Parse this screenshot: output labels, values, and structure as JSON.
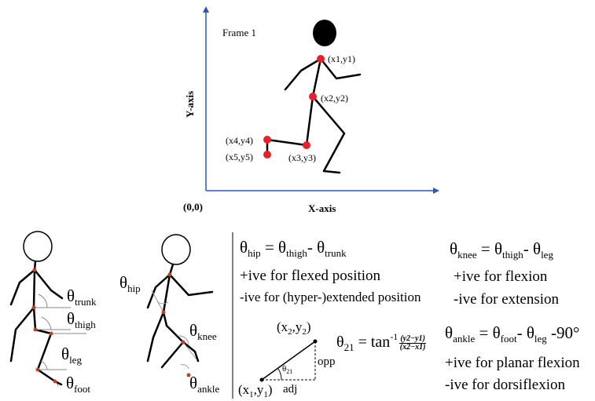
{
  "top_plot": {
    "frame_label": "Frame 1",
    "x_axis_label": "X-axis",
    "y_axis_label": "Y-axis",
    "origin_label": "(0,0)",
    "points": [
      {
        "label": "(x1,y1)"
      },
      {
        "label": "(x2,y2)"
      },
      {
        "label": "(x3,y3)"
      },
      {
        "label": "(x4,y4)"
      },
      {
        "label": "(x5,y5)"
      }
    ],
    "marker_color": "#e8202a"
  },
  "left_figure": {
    "theta": "θ",
    "trunk_sub": "trunk",
    "thigh_sub": "thigh",
    "leg_sub": "leg",
    "foot_sub": "foot",
    "joint_color": "#b8451c"
  },
  "middle_figure": {
    "theta": "θ",
    "hip_sub": "hip",
    "knee_sub": "knee",
    "ankle_sub": "ankle"
  },
  "equations": {
    "theta": "θ",
    "minus": "-",
    "equals": " = ",
    "hip_sub": "hip",
    "thigh_sub": "thigh",
    "trunk_sub": "trunk",
    "hip_pos": "+ive for flexed position",
    "hip_neg": "-ive for (hyper-)extended position",
    "knee_sub": "knee",
    "leg_sub": "leg",
    "knee_pos": "+ive for flexion",
    "knee_neg": "-ive for extension",
    "ankle_sub": "ankle",
    "foot_sub": "foot",
    "ankle_tail": "-90°",
    "ankle_pos": "+ive for planar flexion",
    "ankle_neg": "-ive for dorsiflexion",
    "t21_sub": "21",
    "tan": "tan",
    "tan_sup": "-1",
    "frac_num": "(y2−y1)",
    "frac_den": "(x2−x1)",
    "x2y2_a": "(x",
    "x2y2_s1": "2",
    "x2y2_b": ",y",
    "x2y2_s2": "2",
    "x2y2_c": ")",
    "x1y1_a": "(x",
    "x1y1_s1": "1",
    "x1y1_b": ",y",
    "x1y1_s2": "1",
    "x1y1_c": ")",
    "opp": "opp",
    "adj": "adj",
    "tri_theta": "θ",
    "tri_sub": "21"
  }
}
